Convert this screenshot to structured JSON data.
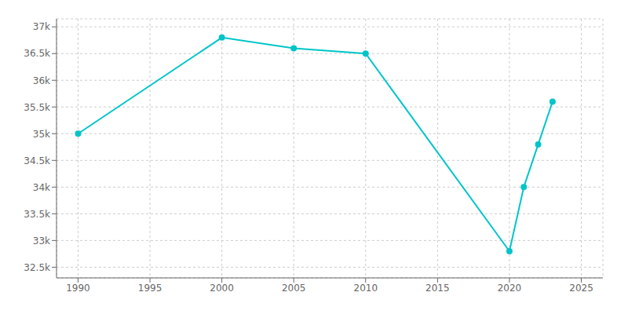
{
  "chart_data": {
    "type": "line",
    "x": [
      1990,
      2000,
      2005,
      2010,
      2020,
      2021,
      2022,
      2023
    ],
    "values": [
      35000,
      36800,
      36600,
      36500,
      32800,
      34000,
      34800,
      35600
    ],
    "color": "#00C5C8",
    "marker": "o",
    "xlim": [
      1988.5,
      2026.5
    ],
    "xticks": [
      1990,
      1995,
      2000,
      2005,
      2010,
      2015,
      2020,
      2025
    ],
    "ylim": [
      32300,
      37150
    ],
    "yticks": [
      {
        "value": 32500,
        "label": "32.5k"
      },
      {
        "value": 33000,
        "label": "33k"
      },
      {
        "value": 33500,
        "label": "33.5k"
      },
      {
        "value": 34000,
        "label": "34k"
      },
      {
        "value": 34500,
        "label": "34.5k"
      },
      {
        "value": 35000,
        "label": "35k"
      },
      {
        "value": 35500,
        "label": "35.5k"
      },
      {
        "value": 36000,
        "label": "36k"
      },
      {
        "value": 36500,
        "label": "36.5k"
      },
      {
        "value": 37000,
        "label": "37k"
      }
    ],
    "grid": true
  }
}
